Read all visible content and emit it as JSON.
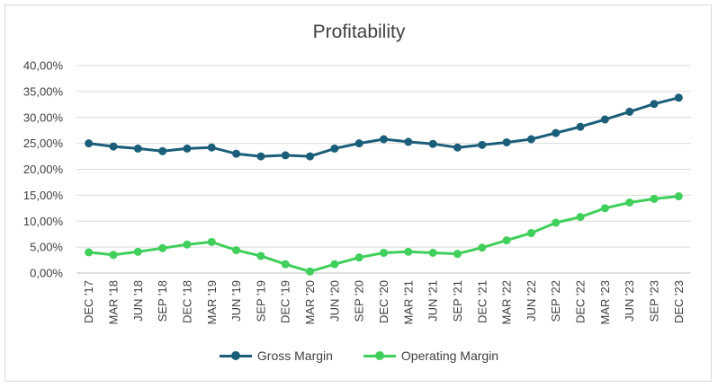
{
  "chart_data": {
    "type": "line",
    "title": "Profitability",
    "xlabel": "",
    "ylabel": "",
    "ylim": [
      0,
      40
    ],
    "y_ticks": [
      "0,00%",
      "5,00%",
      "10,00%",
      "15,00%",
      "20,00%",
      "25,00%",
      "30,00%",
      "35,00%",
      "40,00%"
    ],
    "categories": [
      "DEC '17",
      "MAR '18",
      "JUN '18",
      "SEP '18",
      "DEC '18",
      "MAR '19",
      "JUN '19",
      "SEP '19",
      "DEC '19",
      "MAR '20",
      "JUN '20",
      "SEP '20",
      "DEC '20",
      "MAR '21",
      "JUN '21",
      "SEP '21",
      "DEC '21",
      "MAR '22",
      "JUN '22",
      "SEP '22",
      "DEC '22",
      "MAR '23",
      "JUN '23",
      "SEP '23",
      "DEC '23"
    ],
    "series": [
      {
        "name": "Gross Margin",
        "color": "#1b5e7a",
        "values": [
          25.0,
          24.4,
          24.0,
          23.5,
          24.0,
          24.2,
          23.0,
          22.5,
          22.7,
          22.5,
          24.0,
          25.0,
          25.8,
          25.3,
          24.9,
          24.2,
          24.7,
          25.2,
          25.8,
          27.0,
          28.2,
          29.6,
          31.1,
          32.6,
          33.8
        ]
      },
      {
        "name": "Operating Margin",
        "color": "#3fcf5a",
        "values": [
          4.0,
          3.5,
          4.1,
          4.8,
          5.5,
          6.0,
          4.4,
          3.3,
          1.7,
          0.3,
          1.7,
          3.0,
          3.9,
          4.1,
          3.9,
          3.7,
          4.9,
          6.3,
          7.7,
          9.7,
          10.8,
          12.5,
          13.6,
          14.3,
          14.8
        ]
      }
    ],
    "legend_position": "bottom",
    "grid": true
  }
}
